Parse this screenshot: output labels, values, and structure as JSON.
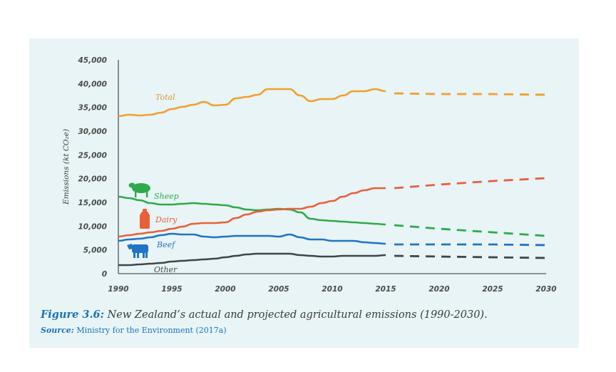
{
  "caption": {
    "figure_label": "Figure 3.6:",
    "figure_text": " New Zealand’s actual and projected agricultural emissions (1990-2030).",
    "source_label": "Source:",
    "source_text": " Ministry for the Environment (2017a)"
  },
  "chart_data": {
    "type": "line",
    "title": "New Zealand’s actual and projected agricultural emissions (1990-2030)",
    "xlabel": "",
    "ylabel": "Emissions (kt CO₂e)",
    "xlim": [
      1990,
      2030
    ],
    "ylim": [
      0,
      45000
    ],
    "grid": false,
    "legend": "inline labels",
    "x_ticks": [
      "1990",
      "1995",
      "2000",
      "2005",
      "2010",
      "2015",
      "2020",
      "2025",
      "2030"
    ],
    "y_ticks": [
      "0",
      "5,000",
      "10,000",
      "15,000",
      "20,000",
      "25,000",
      "30,000",
      "35,000",
      "40,000",
      "45,000"
    ],
    "actual_years": [
      1990,
      1991,
      1992,
      1993,
      1994,
      1995,
      1996,
      1997,
      1998,
      1999,
      2000,
      2001,
      2002,
      2003,
      2004,
      2005,
      2006,
      2007,
      2008,
      2009,
      2010,
      2011,
      2012,
      2013,
      2014,
      2015
    ],
    "projected_years": [
      2015,
      2020,
      2025,
      2030
    ],
    "series": [
      {
        "name": "Total",
        "color": "#f0a030",
        "icon": null,
        "actual": [
          33150,
          33450,
          33300,
          33450,
          33900,
          34650,
          35100,
          35550,
          36150,
          35400,
          35550,
          36900,
          37200,
          37650,
          38850,
          38850,
          38850,
          37500,
          36300,
          36750,
          36750,
          37500,
          38400,
          38400,
          38850,
          38400
        ],
        "projected": [
          37950,
          37800,
          37800,
          37650
        ]
      },
      {
        "name": "Sheep",
        "color": "#2eaa4a",
        "icon": "sheep-icon",
        "actual": [
          16200,
          15900,
          15450,
          14850,
          14550,
          14550,
          14700,
          14850,
          14700,
          14550,
          14400,
          13950,
          13500,
          13350,
          13500,
          13650,
          13500,
          12900,
          11550,
          11250,
          11100,
          10950,
          10800,
          10650,
          10500,
          10350
        ],
        "projected": [
          10200,
          9450,
          8700,
          7950
        ]
      },
      {
        "name": "Dairy",
        "color": "#e8603a",
        "icon": "milk-bottle-icon",
        "actual": [
          7800,
          8100,
          8400,
          8700,
          9000,
          9450,
          9900,
          10500,
          10650,
          10650,
          10800,
          11700,
          12450,
          13050,
          13350,
          13500,
          13650,
          13650,
          14100,
          14850,
          15300,
          16200,
          16950,
          17550,
          18000,
          18000
        ],
        "projected": [
          18000,
          18750,
          19500,
          20100
        ]
      },
      {
        "name": "Beef",
        "color": "#1f75c4",
        "icon": "cow-icon",
        "actual": [
          6900,
          7200,
          7350,
          7650,
          8100,
          8400,
          8250,
          8250,
          7800,
          7650,
          7800,
          7950,
          7950,
          7950,
          7950,
          7800,
          8250,
          7650,
          7200,
          7200,
          6900,
          6900,
          6900,
          6600,
          6450,
          6300
        ],
        "projected": [
          6150,
          6150,
          6150,
          6000
        ]
      },
      {
        "name": "Other",
        "color": "#404548",
        "icon": null,
        "actual": [
          1800,
          1800,
          1950,
          2100,
          2250,
          2550,
          2700,
          2850,
          3000,
          3150,
          3450,
          3750,
          4050,
          4200,
          4200,
          4200,
          4200,
          3900,
          3750,
          3600,
          3600,
          3750,
          3750,
          3750,
          3750,
          3900
        ],
        "projected": [
          3750,
          3600,
          3450,
          3300
        ]
      }
    ]
  }
}
